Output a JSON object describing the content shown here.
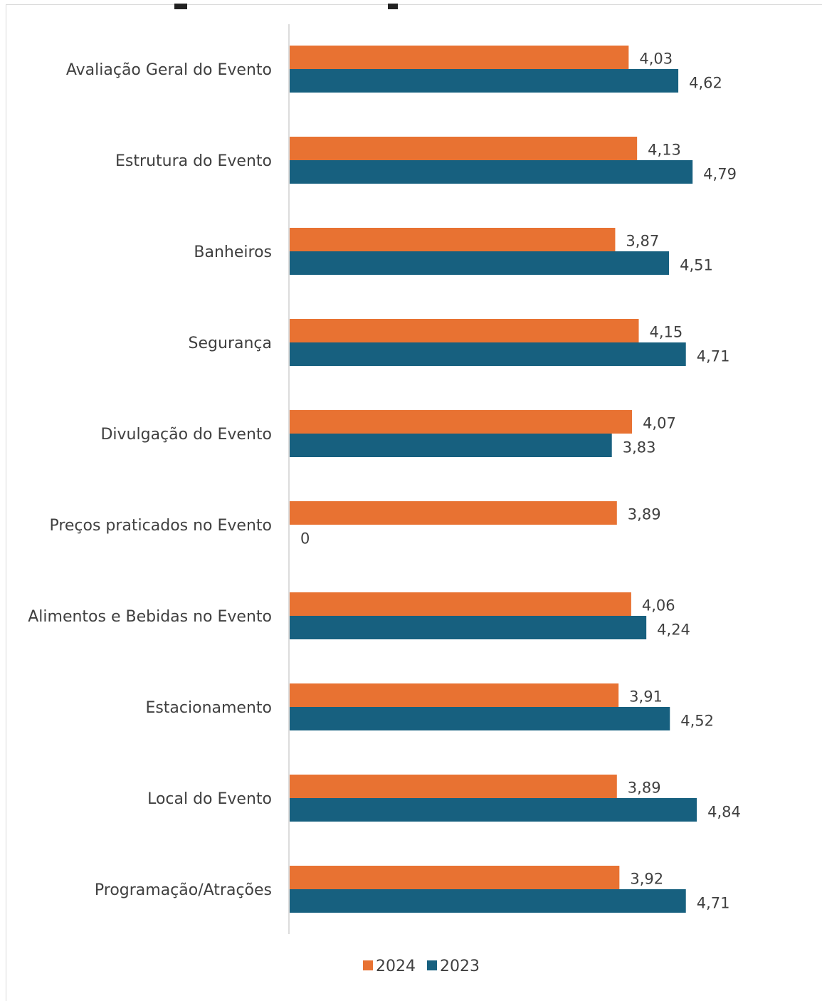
{
  "chart_data": {
    "type": "bar",
    "orientation": "horizontal",
    "categories": [
      "Avaliação Geral do Evento",
      "Estrutura do Evento",
      "Banheiros",
      "Segurança",
      "Divulgação do Evento",
      "Preços praticados no Evento",
      "Alimentos e Bebidas no Evento",
      "Estacionamento",
      "Local do Evento",
      "Programação/Atrações"
    ],
    "series": [
      {
        "name": "2024",
        "color": "#e87232",
        "values": [
          4.03,
          4.13,
          3.87,
          4.15,
          4.07,
          3.89,
          4.06,
          3.91,
          3.89,
          3.92
        ],
        "labels": [
          "4,03",
          "4,13",
          "3,87",
          "4,15",
          "4,07",
          "3,89",
          "4,06",
          "3,91",
          "3,89",
          "3,92"
        ]
      },
      {
        "name": "2023",
        "color": "#17607f",
        "values": [
          4.62,
          4.79,
          4.51,
          4.71,
          3.83,
          0,
          4.24,
          4.52,
          4.84,
          4.71
        ],
        "labels": [
          "4,62",
          "4,79",
          "4,51",
          "4,71",
          "3,83",
          "0",
          "4,24",
          "4,52",
          "4,84",
          "4,71"
        ]
      }
    ],
    "xlim": [
      0,
      5
    ],
    "grid": false,
    "legend": "bottom"
  }
}
